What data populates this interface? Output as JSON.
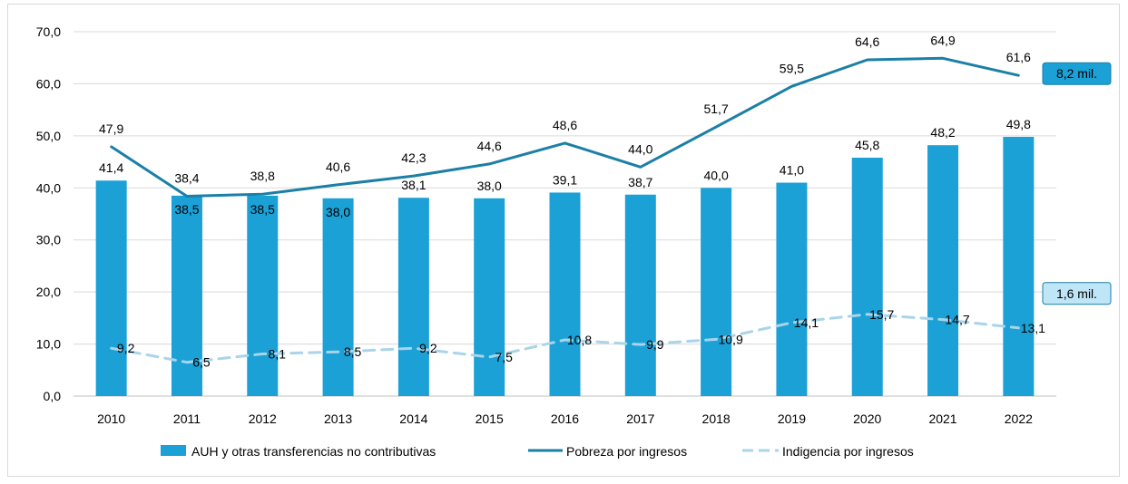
{
  "chart_data": {
    "type": "bar",
    "categories": [
      "2010",
      "2011",
      "2012",
      "2013",
      "2014",
      "2015",
      "2016",
      "2017",
      "2018",
      "2019",
      "2020",
      "2021",
      "2022"
    ],
    "ylim": [
      0,
      70
    ],
    "yticks": [
      "0,0",
      "10,0",
      "20,0",
      "30,0",
      "40,0",
      "50,0",
      "60,0",
      "70,0"
    ],
    "grid": true,
    "legend_position": "bottom",
    "series": [
      {
        "name": "AUH y otras transferencias no contributivas",
        "kind": "bar",
        "color": "#1ba1d6",
        "values": [
          41.4,
          38.5,
          38.5,
          38.0,
          38.1,
          38.0,
          39.1,
          38.7,
          40.0,
          41.0,
          45.8,
          48.2,
          49.8
        ],
        "labels": [
          "41,4",
          "38,5",
          "38,5",
          "38,0",
          "38,1",
          "38,0",
          "39,1",
          "38,7",
          "40,0",
          "41,0",
          "45,8",
          "48,2",
          "49,8"
        ]
      },
      {
        "name": "Pobreza por ingresos",
        "kind": "line",
        "color": "#1b7fa6",
        "values": [
          47.9,
          38.4,
          38.8,
          40.6,
          42.3,
          44.6,
          48.6,
          44.0,
          51.7,
          59.5,
          64.6,
          64.9,
          61.6
        ],
        "labels": [
          "47,9",
          "38,4",
          "38,8",
          "40,6",
          "42,3",
          "44,6",
          "48,6",
          "44,0",
          "51,7",
          "59,5",
          "64,6",
          "64,9",
          "61,6"
        ]
      },
      {
        "name": "Indigencia por ingresos",
        "kind": "dashed-line",
        "color": "#a9d4ea",
        "values": [
          9.2,
          6.5,
          8.1,
          8.5,
          9.2,
          7.5,
          10.8,
          9.9,
          10.9,
          14.1,
          15.7,
          14.7,
          13.1
        ],
        "labels": [
          "9,2",
          "6,5",
          "8,1",
          "8,5",
          "9,2",
          "7,5",
          "10,8",
          "9,9",
          "10,9",
          "14,1",
          "15,7",
          "14,7",
          "13,1"
        ]
      }
    ],
    "annotations": [
      {
        "text": "8,2 mil.",
        "series": 1,
        "fill": "#1ba1d6"
      },
      {
        "text": "1,6 mil.",
        "series": 2,
        "fill": "#bfe6f7"
      }
    ]
  }
}
